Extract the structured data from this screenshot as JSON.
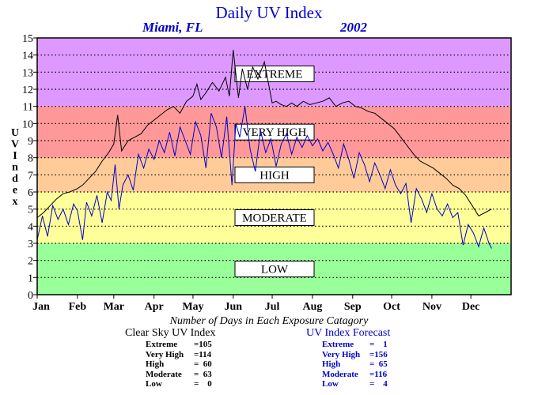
{
  "title": "Daily UV Index",
  "location": "Miami, FL",
  "year": "2002",
  "chart_data": {
    "type": "line",
    "ylabel": "UV Index",
    "ylim": [
      0,
      15
    ],
    "yticks": [
      "0",
      "1",
      "2",
      "3",
      "4",
      "5",
      "6",
      "7",
      "8",
      "9",
      "10",
      "11",
      "12",
      "13",
      "14",
      "15"
    ],
    "xlim": [
      0,
      365
    ],
    "months": [
      {
        "label": "Jan",
        "day": 0
      },
      {
        "label": "Feb",
        "day": 31
      },
      {
        "label": "Mar",
        "day": 59
      },
      {
        "label": "Apr",
        "day": 90
      },
      {
        "label": "May",
        "day": 120
      },
      {
        "label": "Jun",
        "day": 151
      },
      {
        "label": "Jul",
        "day": 181
      },
      {
        "label": "Aug",
        "day": 212
      },
      {
        "label": "Sep",
        "day": 243
      },
      {
        "label": "Oct",
        "day": 273
      },
      {
        "label": "Nov",
        "day": 304
      },
      {
        "label": "Dec",
        "day": 334
      }
    ],
    "grid": true,
    "bands": [
      {
        "label": "LOW",
        "from": 0,
        "to": 3,
        "color": "#99ff99"
      },
      {
        "label": "MODERATE",
        "from": 3,
        "to": 6,
        "color": "#ffff99"
      },
      {
        "label": "HIGH",
        "from": 6,
        "to": 8,
        "color": "#ffcc99"
      },
      {
        "label": "VERY HIGH",
        "from": 8,
        "to": 11,
        "color": "#ff9999"
      },
      {
        "label": "EXTREME",
        "from": 11,
        "to": 15,
        "color": "#dd99ff"
      }
    ],
    "series": [
      {
        "name": "Clear Sky UV Index",
        "color": "#000000",
        "x": [
          0,
          5,
          10,
          15,
          20,
          25,
          31,
          35,
          40,
          45,
          50,
          55,
          59,
          62,
          65,
          70,
          75,
          80,
          85,
          90,
          95,
          100,
          105,
          110,
          115,
          120,
          123,
          126,
          130,
          135,
          140,
          145,
          148,
          151,
          155,
          158,
          162,
          166,
          170,
          175,
          178,
          181,
          184,
          188,
          192,
          196,
          200,
          205,
          210,
          215,
          220,
          225,
          230,
          235,
          240,
          245,
          250,
          255,
          260,
          265,
          270,
          275,
          280,
          285,
          290,
          295,
          300,
          305,
          310,
          315,
          320,
          325,
          330,
          335,
          340,
          345,
          350
        ],
        "y": [
          4.5,
          4.8,
          5.2,
          5.6,
          5.9,
          6.0,
          6.2,
          6.4,
          6.8,
          7.2,
          7.8,
          8.3,
          8.8,
          10.5,
          8.4,
          9.0,
          9.2,
          9.4,
          9.9,
          10.2,
          10.5,
          10.8,
          11.0,
          10.6,
          11.3,
          11.6,
          12.3,
          11.4,
          11.8,
          12.4,
          11.9,
          12.7,
          11.6,
          14.3,
          11.5,
          13.2,
          12.0,
          13.3,
          12.6,
          13.6,
          12.4,
          11.2,
          11.3,
          11.1,
          11.0,
          11.2,
          11.0,
          11.3,
          11.1,
          11.2,
          11.3,
          11.5,
          11.0,
          11.2,
          11.3,
          11.0,
          10.9,
          10.7,
          10.6,
          10.3,
          10.0,
          9.7,
          9.2,
          8.7,
          8.2,
          7.8,
          7.6,
          7.4,
          7.1,
          6.8,
          6.4,
          6.2,
          5.8,
          5.2,
          4.6,
          4.8,
          5.0
        ]
      },
      {
        "name": "UV Index Forecast",
        "color": "#0000cc",
        "x": [
          0,
          4,
          8,
          12,
          16,
          20,
          24,
          28,
          31,
          35,
          38,
          42,
          46,
          50,
          54,
          57,
          60,
          63,
          66,
          70,
          74,
          78,
          82,
          86,
          90,
          94,
          98,
          102,
          106,
          110,
          114,
          118,
          122,
          126,
          130,
          134,
          138,
          142,
          146,
          150,
          153,
          156,
          160,
          164,
          168,
          172,
          176,
          180,
          184,
          188,
          192,
          196,
          200,
          204,
          208,
          212,
          216,
          220,
          224,
          228,
          232,
          236,
          240,
          244,
          248,
          252,
          256,
          260,
          264,
          268,
          272,
          276,
          280,
          284,
          288,
          292,
          296,
          300,
          304,
          308,
          312,
          316,
          320,
          324,
          328,
          332,
          336,
          340,
          344,
          348,
          350
        ],
        "y": [
          3.2,
          4.6,
          3.4,
          5.2,
          4.4,
          5.0,
          4.1,
          5.3,
          4.9,
          3.2,
          5.4,
          4.6,
          5.8,
          4.2,
          6.0,
          5.5,
          7.6,
          5.0,
          6.4,
          7.0,
          6.1,
          8.2,
          7.4,
          8.5,
          7.9,
          9.0,
          8.3,
          9.5,
          8.1,
          9.8,
          9.0,
          8.2,
          10.1,
          9.3,
          7.4,
          10.6,
          9.8,
          8.0,
          10.4,
          6.4,
          10.0,
          9.2,
          11.0,
          8.5,
          7.2,
          9.6,
          8.3,
          9.1,
          7.5,
          8.8,
          9.4,
          8.2,
          9.2,
          8.6,
          9.3,
          8.7,
          9.1,
          8.4,
          8.9,
          8.2,
          7.4,
          8.8,
          7.9,
          6.8,
          8.3,
          7.6,
          6.6,
          7.7,
          7.0,
          6.2,
          7.3,
          6.4,
          5.9,
          6.5,
          4.2,
          6.2,
          5.6,
          4.8,
          5.9,
          5.0,
          4.6,
          5.3,
          4.5,
          4.8,
          2.9,
          4.1,
          3.6,
          2.8,
          3.9,
          3.0,
          2.7
        ]
      }
    ]
  },
  "counts": {
    "title": "Number of Days in Each Exposure Catagory",
    "clear_sky": {
      "title": "Clear Sky UV Index",
      "color": "#000000",
      "rows": [
        {
          "label": "Extreme",
          "value": "=105"
        },
        {
          "label": "Very High",
          "value": "=114"
        },
        {
          "label": "High",
          "value": "=  60"
        },
        {
          "label": "Moderate",
          "value": "=  63"
        },
        {
          "label": "Low",
          "value": "=    0"
        }
      ]
    },
    "forecast": {
      "title": "UV Index Forecast",
      "color": "#0000cc",
      "rows": [
        {
          "label": "Extreme",
          "value": "=    1"
        },
        {
          "label": "Very High",
          "value": "=156"
        },
        {
          "label": "High",
          "value": "=  65"
        },
        {
          "label": "Moderate",
          "value": "=116"
        },
        {
          "label": "Low",
          "value": "=    4"
        }
      ]
    }
  }
}
